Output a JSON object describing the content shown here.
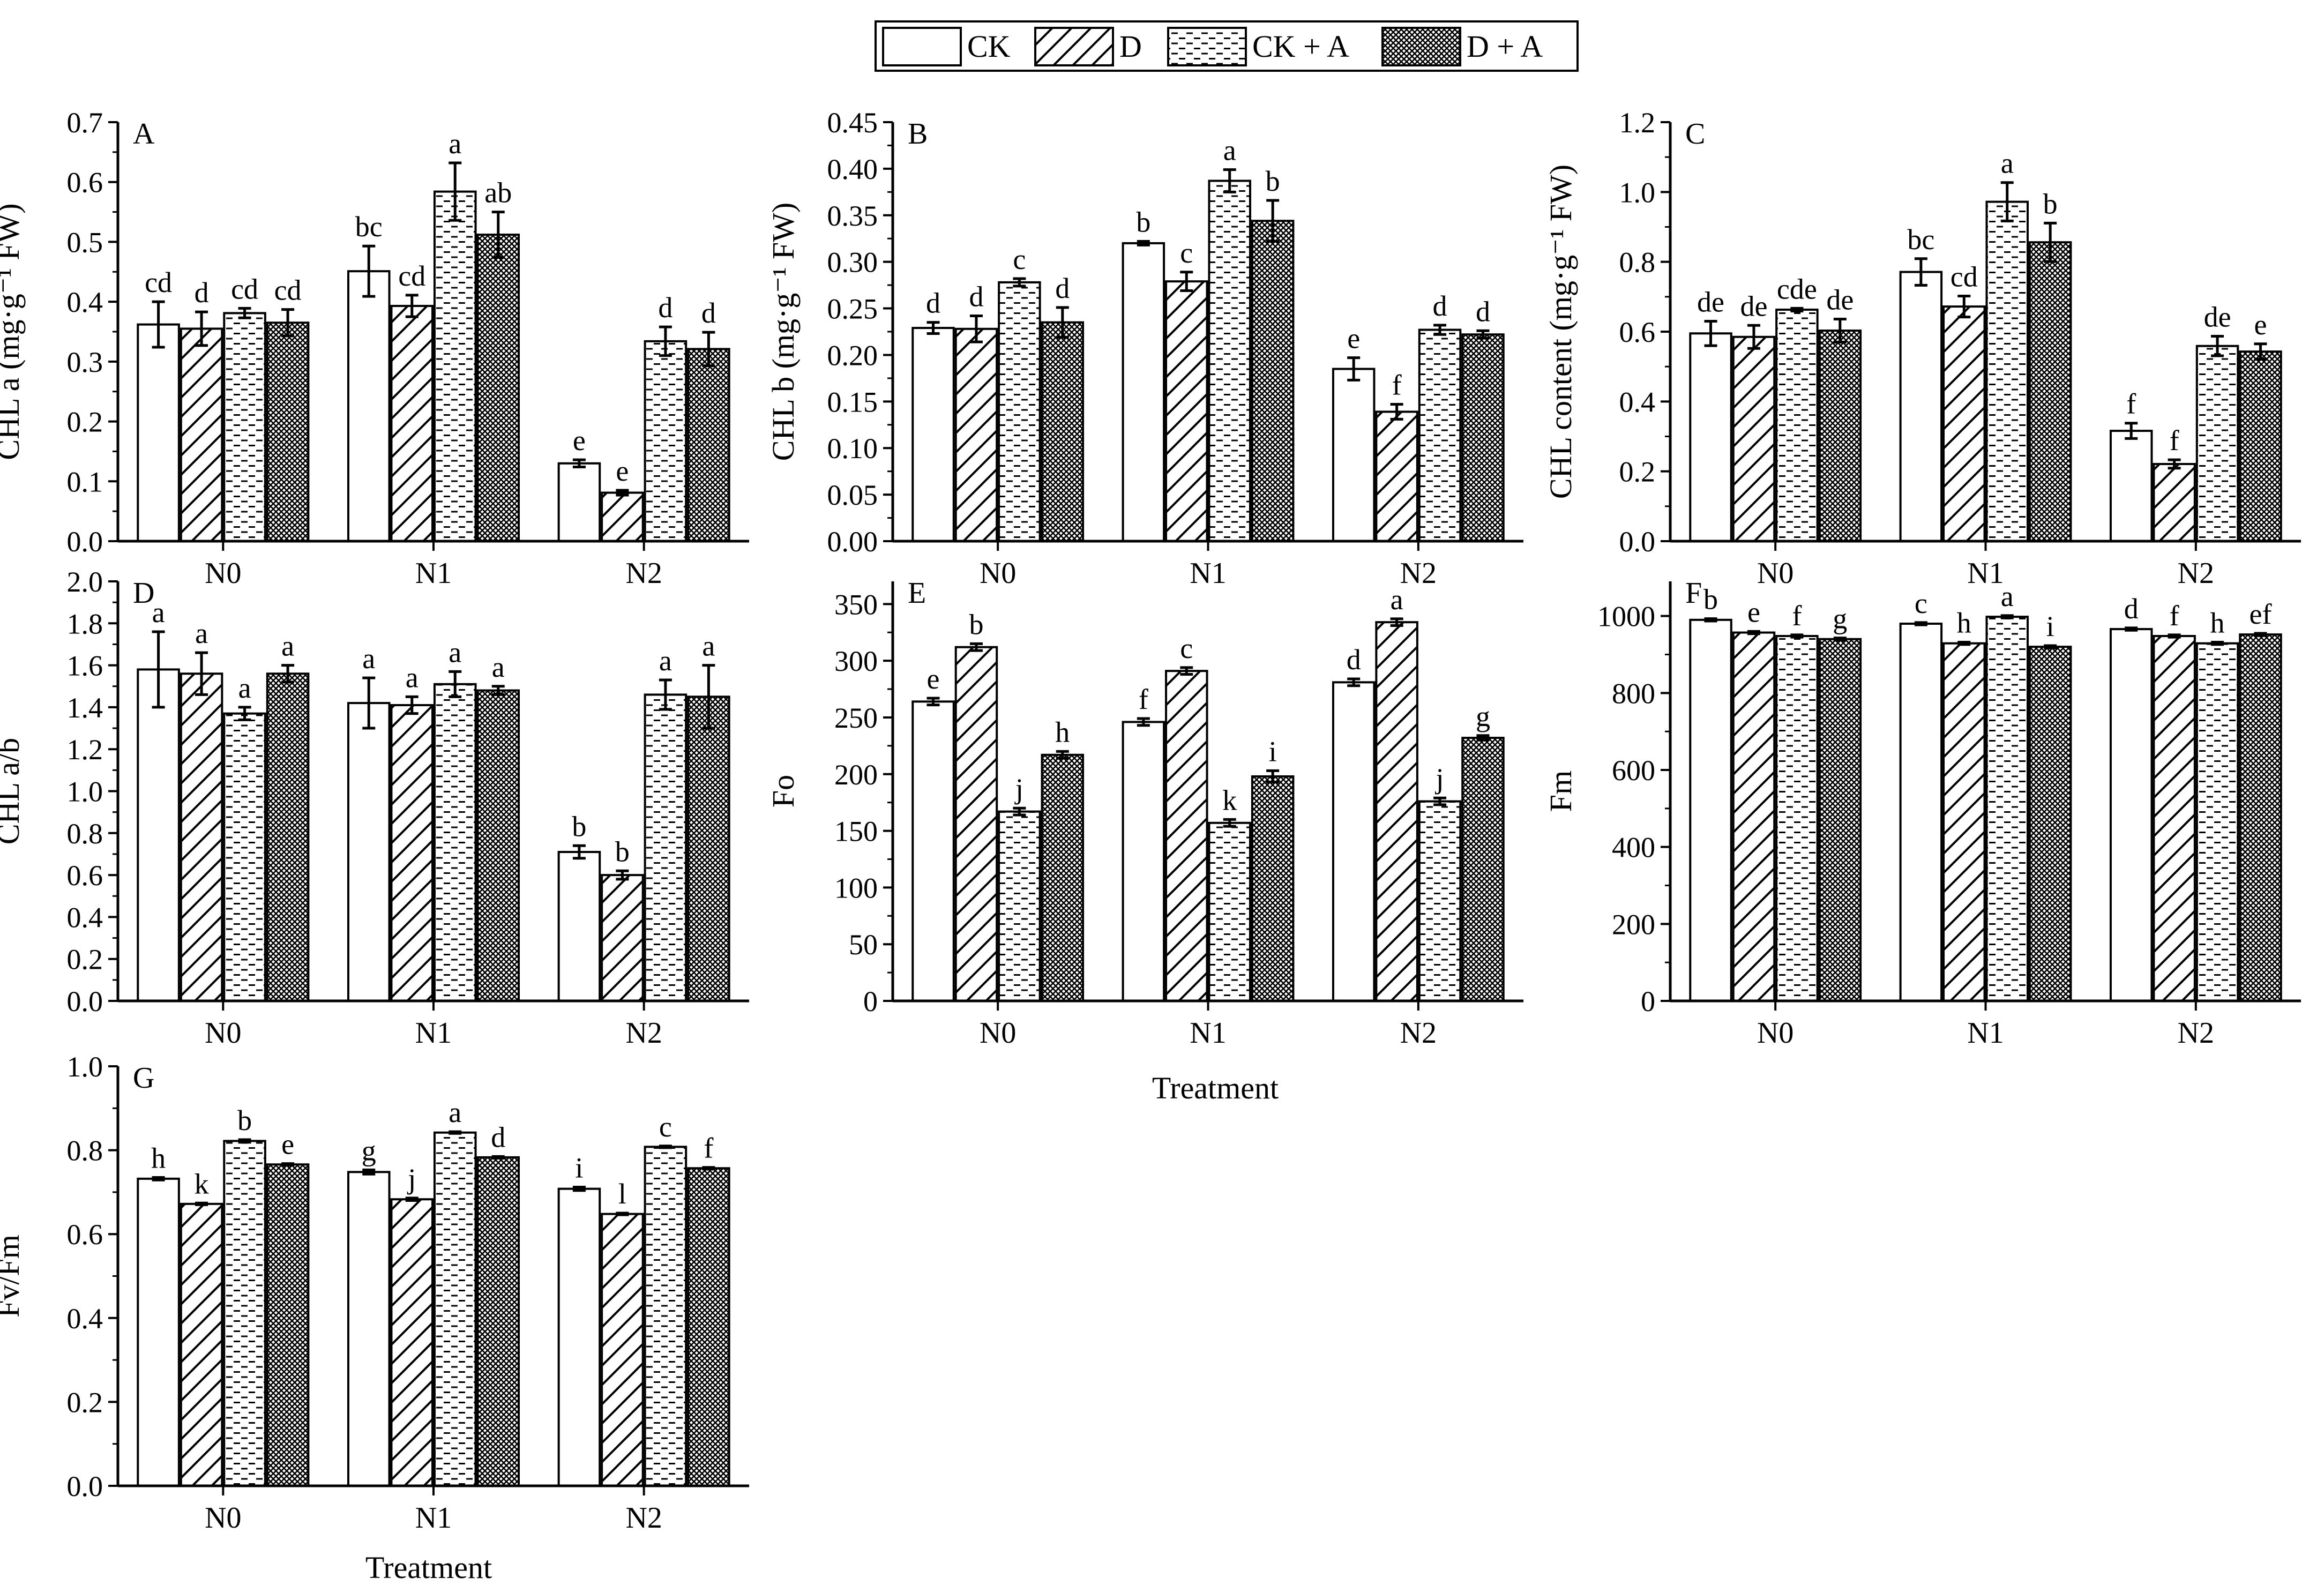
{
  "legend": {
    "items": [
      {
        "label": "CK",
        "pattern": "none"
      },
      {
        "label": "D",
        "pattern": "diagonal"
      },
      {
        "label": "CK + A",
        "pattern": "dashes"
      },
      {
        "label": "D + A",
        "pattern": "crosshatch"
      }
    ]
  },
  "x_title": "Treatment",
  "chart_data": [
    {
      "type": "bar",
      "panel": "A",
      "ylabel": "CHL a (mg·g⁻¹ FW)",
      "ylim": [
        0,
        0.7
      ],
      "ticks": [
        0,
        0.1,
        0.2,
        0.3,
        0.4,
        0.5,
        0.6,
        0.7
      ],
      "decimals": 1,
      "categories": [
        "N0",
        "N1",
        "N2"
      ],
      "series": [
        {
          "name": "CK",
          "values": [
            0.362,
            0.451,
            0.13
          ],
          "errors": [
            0.038,
            0.042,
            0.006
          ],
          "letters": [
            "cd",
            "bc",
            "e"
          ]
        },
        {
          "name": "D",
          "values": [
            0.355,
            0.393,
            0.081
          ],
          "errors": [
            0.028,
            0.018,
            0.004
          ],
          "letters": [
            "d",
            "cd",
            "e"
          ]
        },
        {
          "name": "CK + A",
          "values": [
            0.381,
            0.584,
            0.334
          ],
          "errors": [
            0.008,
            0.048,
            0.024
          ],
          "letters": [
            "cd",
            "a",
            "d"
          ]
        },
        {
          "name": "D + A",
          "values": [
            0.365,
            0.512,
            0.321
          ],
          "errors": [
            0.022,
            0.038,
            0.028
          ],
          "letters": [
            "cd",
            "ab",
            "d"
          ]
        }
      ]
    },
    {
      "type": "bar",
      "panel": "B",
      "ylabel": "CHL b (mg·g⁻¹ FW)",
      "ylim": [
        0,
        0.45
      ],
      "ticks": [
        0,
        0.05,
        0.1,
        0.15,
        0.2,
        0.25,
        0.3,
        0.35,
        0.4,
        0.45
      ],
      "decimals": 2,
      "categories": [
        "N0",
        "N1",
        "N2"
      ],
      "series": [
        {
          "name": "CK",
          "values": [
            0.229,
            0.32,
            0.185
          ],
          "errors": [
            0.006,
            0.002,
            0.012
          ],
          "letters": [
            "d",
            "b",
            "e"
          ]
        },
        {
          "name": "D",
          "values": [
            0.228,
            0.279,
            0.139
          ],
          "errors": [
            0.014,
            0.01,
            0.008
          ],
          "letters": [
            "d",
            "c",
            "f"
          ]
        },
        {
          "name": "CK + A",
          "values": [
            0.278,
            0.387,
            0.227
          ],
          "errors": [
            0.004,
            0.012,
            0.005
          ],
          "letters": [
            "c",
            "a",
            "d"
          ]
        },
        {
          "name": "D + A",
          "values": [
            0.235,
            0.344,
            0.222
          ],
          "errors": [
            0.016,
            0.022,
            0.004
          ],
          "letters": [
            "d",
            "b",
            "d"
          ]
        }
      ]
    },
    {
      "type": "bar",
      "panel": "C",
      "ylabel": "CHL content (mg·g⁻¹ FW)",
      "ylim": [
        0,
        1.2
      ],
      "ticks": [
        0,
        0.2,
        0.4,
        0.6,
        0.8,
        1.0,
        1.2
      ],
      "decimals": 1,
      "categories": [
        "N0",
        "N1",
        "N2"
      ],
      "series": [
        {
          "name": "CK",
          "values": [
            0.595,
            0.771,
            0.316
          ],
          "errors": [
            0.035,
            0.038,
            0.022
          ],
          "letters": [
            "de",
            "bc",
            "f"
          ]
        },
        {
          "name": "D",
          "values": [
            0.585,
            0.672,
            0.221
          ],
          "errors": [
            0.033,
            0.03,
            0.012
          ],
          "letters": [
            "de",
            "cd",
            "f"
          ]
        },
        {
          "name": "CK + A",
          "values": [
            0.663,
            0.972,
            0.559
          ],
          "errors": [
            0.004,
            0.055,
            0.028
          ],
          "letters": [
            "cde",
            "a",
            "de"
          ]
        },
        {
          "name": "D + A",
          "values": [
            0.603,
            0.856,
            0.543
          ],
          "errors": [
            0.033,
            0.055,
            0.022
          ],
          "letters": [
            "de",
            "b",
            "e"
          ]
        }
      ]
    },
    {
      "type": "bar",
      "panel": "D",
      "ylabel": "CHL a/b",
      "ylim": [
        0,
        2.0
      ],
      "ticks": [
        0,
        0.2,
        0.4,
        0.6,
        0.8,
        1.0,
        1.2,
        1.4,
        1.6,
        1.8,
        2.0
      ],
      "decimals": 1,
      "categories": [
        "N0",
        "N1",
        "N2"
      ],
      "series": [
        {
          "name": "CK",
          "values": [
            1.58,
            1.42,
            0.71
          ],
          "errors": [
            0.18,
            0.12,
            0.03
          ],
          "letters": [
            "a",
            "a",
            "b"
          ]
        },
        {
          "name": "D",
          "values": [
            1.56,
            1.41,
            0.6
          ],
          "errors": [
            0.1,
            0.04,
            0.02
          ],
          "letters": [
            "a",
            "a",
            "b"
          ]
        },
        {
          "name": "CK + A",
          "values": [
            1.37,
            1.51,
            1.46
          ],
          "errors": [
            0.03,
            0.06,
            0.07
          ],
          "letters": [
            "a",
            "a",
            "a"
          ]
        },
        {
          "name": "D + A",
          "values": [
            1.56,
            1.48,
            1.45
          ],
          "errors": [
            0.04,
            0.02,
            0.15
          ],
          "letters": [
            "a",
            "a",
            "a"
          ]
        }
      ]
    },
    {
      "type": "bar",
      "panel": "E",
      "ylabel": "Fo",
      "ylim": [
        0,
        370
      ],
      "ticks": [
        0,
        50,
        100,
        150,
        200,
        250,
        300,
        350
      ],
      "decimals": 0,
      "categories": [
        "N0",
        "N1",
        "N2"
      ],
      "series": [
        {
          "name": "CK",
          "values": [
            264,
            246,
            281
          ],
          "errors": [
            3,
            3,
            3
          ],
          "letters": [
            "e",
            "f",
            "d"
          ]
        },
        {
          "name": "D",
          "values": [
            312,
            291,
            334
          ],
          "errors": [
            3,
            3,
            3
          ],
          "letters": [
            "b",
            "c",
            "a"
          ]
        },
        {
          "name": "CK + A",
          "values": [
            167,
            157,
            176
          ],
          "errors": [
            3,
            3,
            3
          ],
          "letters": [
            "j",
            "k",
            "j"
          ]
        },
        {
          "name": "D + A",
          "values": [
            217,
            198,
            232
          ],
          "errors": [
            3,
            5,
            2
          ],
          "letters": [
            "h",
            "i",
            "g"
          ]
        }
      ]
    },
    {
      "type": "bar",
      "panel": "F",
      "ylabel": "Fm",
      "ylim": [
        0,
        1090
      ],
      "ticks": [
        0,
        200,
        400,
        600,
        800,
        1000
      ],
      "decimals": 0,
      "categories": [
        "N0",
        "N1",
        "N2"
      ],
      "series": [
        {
          "name": "CK",
          "values": [
            990,
            980,
            966
          ],
          "errors": [
            3,
            3,
            3
          ],
          "letters": [
            "b",
            "c",
            "d"
          ]
        },
        {
          "name": "D",
          "values": [
            957,
            929,
            948
          ],
          "errors": [
            3,
            3,
            3
          ],
          "letters": [
            "e",
            "h",
            "f"
          ]
        },
        {
          "name": "CK + A",
          "values": [
            948,
            998,
            929
          ],
          "errors": [
            3,
            3,
            3
          ],
          "letters": [
            "f",
            "a",
            "h"
          ]
        },
        {
          "name": "D + A",
          "values": [
            940,
            920,
            952
          ],
          "errors": [
            3,
            3,
            3
          ],
          "letters": [
            "g",
            "i",
            "ef"
          ]
        }
      ]
    },
    {
      "type": "bar",
      "panel": "G",
      "ylabel": "Fv/Fm",
      "ylim": [
        0,
        1.0
      ],
      "ticks": [
        0,
        0.2,
        0.4,
        0.6,
        0.8,
        1.0
      ],
      "decimals": 1,
      "categories": [
        "N0",
        "N1",
        "N2"
      ],
      "series": [
        {
          "name": "CK",
          "values": [
            0.732,
            0.748,
            0.708
          ],
          "errors": [
            0.003,
            0.005,
            0.004
          ],
          "letters": [
            "h",
            "g",
            "i"
          ]
        },
        {
          "name": "D",
          "values": [
            0.672,
            0.683,
            0.648
          ],
          "errors": [
            0.002,
            0.003,
            0.002
          ],
          "letters": [
            "k",
            "j",
            "l"
          ]
        },
        {
          "name": "CK + A",
          "values": [
            0.822,
            0.842,
            0.808
          ],
          "errors": [
            0.003,
            0.002,
            0.002
          ],
          "letters": [
            "b",
            "a",
            "c"
          ]
        },
        {
          "name": "D + A",
          "values": [
            0.766,
            0.783,
            0.757
          ],
          "errors": [
            0.002,
            0.002,
            0.002
          ],
          "letters": [
            "e",
            "d",
            "f"
          ]
        }
      ]
    }
  ]
}
